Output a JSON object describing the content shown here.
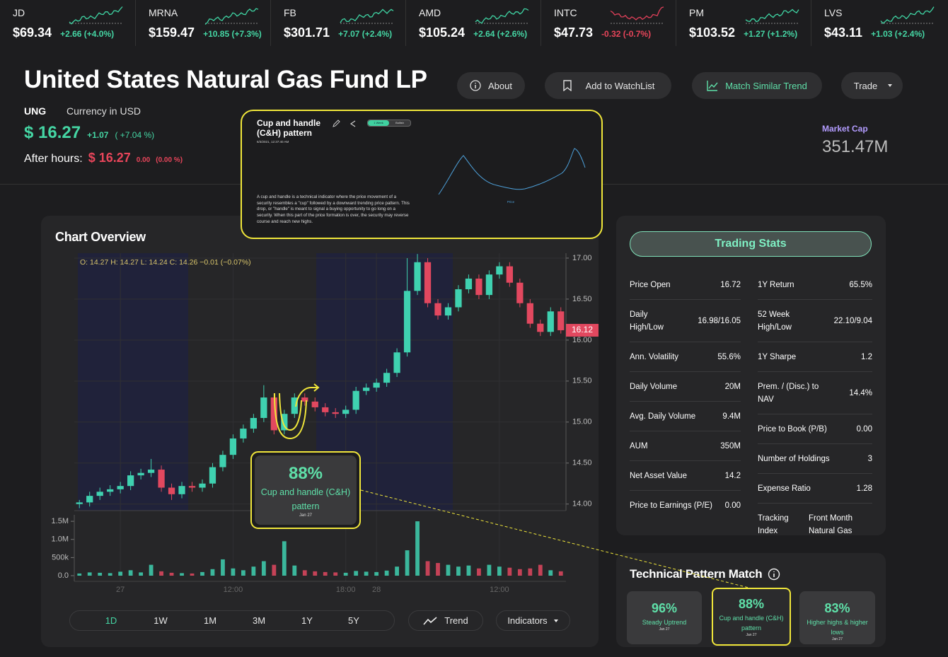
{
  "ticker": [
    {
      "symbol": "JD",
      "price": "$69.34",
      "change": "+2.66 (+4.0%)"
    },
    {
      "symbol": "MRNA",
      "price": "$159.47",
      "change": "+10.85 (+7.3%)"
    },
    {
      "symbol": "FB",
      "price": "$301.71",
      "change": "+7.07 (+2.4%)"
    },
    {
      "symbol": "AMD",
      "price": "$105.24",
      "change": "+2.64 (+2.6%)"
    },
    {
      "symbol": "INTC",
      "price": "$47.73",
      "change": "-0.32 (-0.7%)"
    },
    {
      "symbol": "PM",
      "price": "$103.52",
      "change": "+1.27 (+1.2%)"
    },
    {
      "symbol": "LVS",
      "price": "$43.11",
      "change": "+1.03 (+2.4%)"
    }
  ],
  "header": {
    "title": "United States Natural Gas Fund LP",
    "symbol": "UNG",
    "currency": "Currency in USD",
    "price": "$ 16.27",
    "change": "+1.07",
    "change_pct": "( +7.04 %)",
    "after_hours_label": "After hours:",
    "after_price": "$ 16.27",
    "after_change": "0.00",
    "after_pct": "(0.00 %)",
    "market_cap_label": "Market Cap",
    "market_cap": "351.47M"
  },
  "buttons": [
    "About",
    "Add to WatchList",
    "Match Similar Trend",
    "Trade"
  ],
  "popup": {
    "title": "Cup and handle (C&H) pattern",
    "date": "6/3/2021, 12:37:40 AM",
    "toggle": [
      "1 Week",
      "Bullish"
    ],
    "description": "A cup and handle is a technical indicator where the price movement of a security resembles a \"cup\" followed by a downward trending price pattern. This drop, or \"handle\" is meant to signal a buying opportunity to go long on a security. When this part of the price formation is over, the security may reverse course and reach new highs.",
    "chart_label": "Price"
  },
  "chart_data": {
    "type": "candlestick",
    "title": "Chart Overview",
    "ohlc_legend": "O: 14.27 H: 14.27 L: 14.24 C: 14.26 −0.01 (−0.07%)",
    "categories": [
      null,
      null,
      null,
      null,
      "27",
      null,
      null,
      null,
      null,
      null,
      null,
      null,
      null,
      null,
      null,
      "12:00",
      null,
      null,
      null,
      null,
      null,
      null,
      null,
      null,
      null,
      null,
      "18:00",
      null,
      null,
      "28",
      null,
      null,
      null,
      null,
      null,
      null,
      null,
      null,
      null,
      null,
      null,
      "12:00",
      null,
      null,
      null,
      null,
      null,
      null
    ],
    "open": [
      14.0,
      14.02,
      14.1,
      14.15,
      14.18,
      14.22,
      14.35,
      14.38,
      14.42,
      14.2,
      14.12,
      14.22,
      14.2,
      14.25,
      14.45,
      14.6,
      14.8,
      14.92,
      15.05,
      15.3,
      14.9,
      15.1,
      15.3,
      15.25,
      15.18,
      15.12,
      15.1,
      15.15,
      15.38,
      15.42,
      15.48,
      15.6,
      15.85,
      16.6,
      16.95,
      16.45,
      16.3,
      16.4,
      16.62,
      16.75,
      16.55,
      16.8,
      16.9,
      16.7,
      16.45,
      16.2,
      16.1,
      16.35
    ],
    "high": [
      14.05,
      14.15,
      14.2,
      14.23,
      14.27,
      14.4,
      14.43,
      14.55,
      14.47,
      14.25,
      14.27,
      14.27,
      14.3,
      14.5,
      14.65,
      14.85,
      14.97,
      15.1,
      15.45,
      15.35,
      15.15,
      15.35,
      15.35,
      15.3,
      15.23,
      15.17,
      15.2,
      15.43,
      15.47,
      15.53,
      15.65,
      15.9,
      17.0,
      17.05,
      17.0,
      16.5,
      16.45,
      16.67,
      16.8,
      16.8,
      16.85,
      16.95,
      16.95,
      16.75,
      16.5,
      16.25,
      16.4,
      16.4
    ],
    "low": [
      13.95,
      13.97,
      14.05,
      14.1,
      14.13,
      14.17,
      14.3,
      14.33,
      14.15,
      14.05,
      14.07,
      14.15,
      14.15,
      14.2,
      14.4,
      14.55,
      14.75,
      14.87,
      15.0,
      14.85,
      14.85,
      15.05,
      15.2,
      15.13,
      15.07,
      15.05,
      15.05,
      15.1,
      15.33,
      15.37,
      15.43,
      15.55,
      15.8,
      16.55,
      16.4,
      16.25,
      16.25,
      16.35,
      16.57,
      16.5,
      16.5,
      16.75,
      16.65,
      16.4,
      16.15,
      16.05,
      16.05,
      16.08
    ],
    "close": [
      14.02,
      14.1,
      14.15,
      14.18,
      14.22,
      14.35,
      14.38,
      14.42,
      14.2,
      14.12,
      14.22,
      14.2,
      14.25,
      14.45,
      14.6,
      14.8,
      14.92,
      15.05,
      15.3,
      14.9,
      15.1,
      15.3,
      15.25,
      15.18,
      15.12,
      15.1,
      15.15,
      15.38,
      15.42,
      15.48,
      15.6,
      15.85,
      16.6,
      16.95,
      16.45,
      16.3,
      16.4,
      16.62,
      16.75,
      16.55,
      16.8,
      16.9,
      16.7,
      16.45,
      16.2,
      16.1,
      16.35,
      16.12
    ],
    "volume": [
      60000,
      90000,
      80000,
      70000,
      110000,
      150000,
      90000,
      300000,
      120000,
      80000,
      70000,
      60000,
      100000,
      180000,
      450000,
      200000,
      150000,
      250000,
      400000,
      300000,
      950000,
      280000,
      150000,
      120000,
      100000,
      90000,
      80000,
      130000,
      110000,
      100000,
      140000,
      250000,
      700000,
      1500000,
      400000,
      350000,
      300000,
      250000,
      280000,
      200000,
      300000,
      250000,
      220000,
      180000,
      200000,
      300000,
      150000,
      120000
    ],
    "up_color": "#3fd1b0",
    "down_color": "#e2485f",
    "ylim": [
      13.92,
      17.06
    ],
    "yticks": [
      {
        "value": 14,
        "label": "14.00"
      },
      {
        "value": 14.5,
        "label": "14.50"
      },
      {
        "value": 15,
        "label": "15.00"
      },
      {
        "value": 15.5,
        "label": "15.50"
      },
      {
        "value": 16,
        "label": "16.00"
      },
      {
        "value": 16.5,
        "label": "16.50"
      },
      {
        "value": 17,
        "label": "17.00"
      }
    ],
    "volume_ylim": [
      0,
      1600000
    ],
    "volume_yticks": [
      {
        "value": 0,
        "label": "0.0"
      },
      {
        "value": 500000,
        "label": "500k"
      },
      {
        "value": 1000000,
        "label": "1.0M"
      },
      {
        "value": 1500000,
        "label": "1.5M"
      }
    ],
    "last_price": 16.12,
    "grid": true
  },
  "annotation": {
    "pct": "88%",
    "name": "Cup and handle (C&H) pattern",
    "date": "Jan 27"
  },
  "range_buttons": [
    "1D",
    "1W",
    "1M",
    "3M",
    "1Y",
    "5Y"
  ],
  "trend_button": "Trend",
  "indicators_button": "Indicators",
  "trading_stats": {
    "title": "Trading Stats",
    "left": [
      {
        "label": "Price Open",
        "value": "16.72"
      },
      {
        "label": "Daily High/Low",
        "value": "16.98/16.05"
      },
      {
        "label": "Ann. Volatility",
        "value": "55.6%"
      },
      {
        "label": "Daily Volume",
        "value": "20M"
      },
      {
        "label": "Avg. Daily Volume",
        "value": "9.4M"
      },
      {
        "label": "AUM",
        "value": "350M"
      },
      {
        "label": "Net Asset Value",
        "value": "14.2"
      },
      {
        "label": "Price to Earnings (P/E)",
        "value": "0.00"
      }
    ],
    "right": [
      {
        "label": "1Y Return",
        "value": "65.5%"
      },
      {
        "label": "52 Week High/Low",
        "value": "22.10/9.04"
      },
      {
        "label": "1Y Sharpe",
        "value": "1.2"
      },
      {
        "label": "Prem. / (Disc.) to NAV",
        "value": "14.4%"
      },
      {
        "label": "Price to Book (P/B)",
        "value": "0.00"
      },
      {
        "label": "Number of Holdings",
        "value": "3"
      },
      {
        "label": "Expense Ratio",
        "value": "1.28"
      },
      {
        "label": "Tracking Index",
        "value": "Front Month Natural Gas"
      }
    ]
  },
  "pattern_match": {
    "title": "Technical Pattern Match",
    "cards": [
      {
        "pct": "96%",
        "name": "Steady Uptrend",
        "date": "Jan 27"
      },
      {
        "pct": "88%",
        "name": "Cup and handle (C&H) pattern",
        "date": "Jan 27"
      },
      {
        "pct": "83%",
        "name": "Higher highs & higher lows",
        "date": "Jan 27"
      }
    ]
  }
}
